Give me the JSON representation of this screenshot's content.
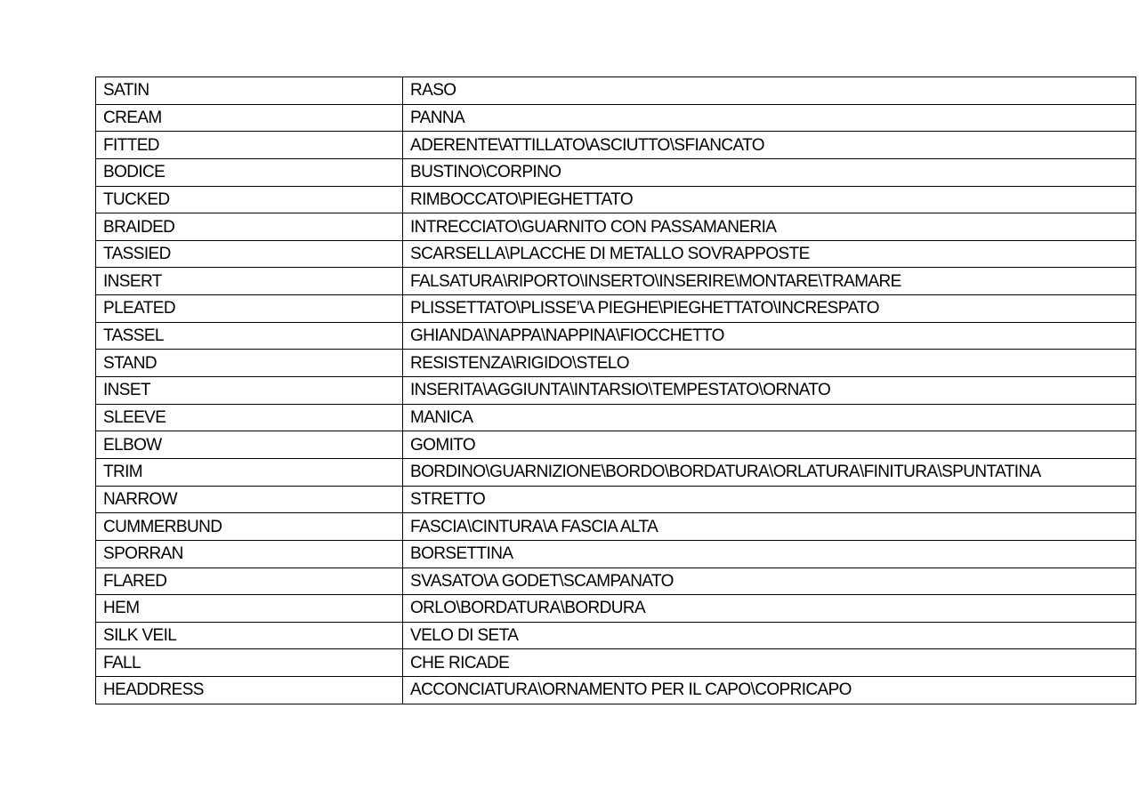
{
  "table": {
    "rows": [
      [
        "SATIN",
        "RASO"
      ],
      [
        "CREAM",
        "PANNA"
      ],
      [
        "FITTED",
        "ADERENTE\\ATTILLATO\\ASCIUTTO\\SFIANCATO"
      ],
      [
        "BODICE",
        "BUSTINO\\CORPINO"
      ],
      [
        "TUCKED",
        "RIMBOCCATO\\PIEGHETTATO"
      ],
      [
        "BRAIDED",
        "INTRECCIATO\\GUARNITO CON PASSAMANERIA"
      ],
      [
        "TASSIED",
        "SCARSELLA\\PLACCHE DI METALLO SOVRAPPOSTE"
      ],
      [
        "INSERT",
        "FALSATURA\\RIPORTO\\INSERTO\\INSERIRE\\MONTARE\\TRAMARE"
      ],
      [
        "PLEATED",
        "PLISSETTATO\\PLISSE’\\A PIEGHE\\PIEGHETTATO\\INCRESPATO"
      ],
      [
        "TASSEL",
        "GHIANDA\\NAPPA\\NAPPINA\\FIOCCHETTO"
      ],
      [
        "STAND",
        "RESISTENZA\\RIGIDO\\STELO"
      ],
      [
        "INSET",
        "INSERITA\\AGGIUNTA\\INTARSIO\\TEMPESTATO\\ORNATO"
      ],
      [
        "SLEEVE",
        "MANICA"
      ],
      [
        "ELBOW",
        "GOMITO"
      ],
      [
        "TRIM",
        "BORDINO\\GUARNIZIONE\\BORDO\\BORDATURA\\ORLATURA\\FINITURA\\SPUNTATINA"
      ],
      [
        "NARROW",
        "STRETTO"
      ],
      [
        "CUMMERBUND",
        "FASCIA\\CINTURA\\A FASCIA ALTA"
      ],
      [
        "SPORRAN",
        "BORSETTINA"
      ],
      [
        "FLARED",
        "SVASATO\\A GODET\\SCAMPANATO"
      ],
      [
        "HEM",
        "ORLO\\BORDATURA\\BORDURA"
      ],
      [
        "SILK VEIL",
        "VELO DI SETA"
      ],
      [
        "FALL",
        "CHE RICADE"
      ],
      [
        "HEADDRESS",
        "ACCONCIATURA\\ORNAMENTO PER IL CAPO\\COPRICAPO"
      ]
    ]
  }
}
